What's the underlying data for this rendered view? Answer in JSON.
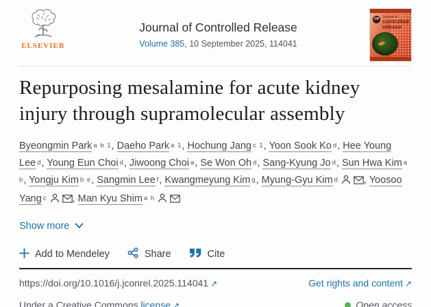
{
  "header": {
    "publisher_name": "ELSEVIER",
    "journal_title": "Journal of Controlled Release",
    "volume_link": "Volume 385",
    "issue_info": ", 10 September 2025, 114041",
    "cover": {
      "logo_text": "CR",
      "line1": "Journal of",
      "line2": "controlled release"
    }
  },
  "article": {
    "title": "Repurposing mesalamine for acute kidney injury through supramolecular assembly"
  },
  "authors": [
    {
      "name": "Byeongmin Park",
      "sup": "a b 1",
      "corresponding": false
    },
    {
      "name": "Daeho Park",
      "sup": "a 1",
      "corresponding": false
    },
    {
      "name": "Hochung Jang",
      "sup": "c 1",
      "corresponding": false
    },
    {
      "name": "Yoon Sook Ko",
      "sup": "d",
      "corresponding": false
    },
    {
      "name": "Hee Young Lee",
      "sup": "d",
      "corresponding": false
    },
    {
      "name": "Young Eun Choi",
      "sup": "d",
      "corresponding": false
    },
    {
      "name": "Jiwoong Choi",
      "sup": "a",
      "corresponding": false
    },
    {
      "name": "Se Won Oh",
      "sup": "d",
      "corresponding": false
    },
    {
      "name": "Sang-Kyung Jo",
      "sup": "d",
      "corresponding": false
    },
    {
      "name": "Sun Hwa Kim",
      "sup": "a b",
      "corresponding": false
    },
    {
      "name": "Yongju Kim",
      "sup": "b e",
      "corresponding": false
    },
    {
      "name": "Sangmin Lee",
      "sup": "f",
      "corresponding": false
    },
    {
      "name": "Kwangmeyung Kim",
      "sup": "g",
      "corresponding": false
    },
    {
      "name": "Myung-Gyu Kim",
      "sup": "d",
      "corresponding": true
    },
    {
      "name": "Yoosoo Yang",
      "sup": "c",
      "corresponding": true
    },
    {
      "name": "Man Kyu Shim",
      "sup": "a h",
      "corresponding": true
    }
  ],
  "actions": {
    "show_more": "Show more",
    "add_to_mendeley": "Add to Mendeley",
    "share": "Share",
    "cite": "Cite"
  },
  "links": {
    "doi": "https://doi.org/10.1016/j.jconrel.2025.114041",
    "rights": "Get rights and content",
    "license_prefix": "Under a Creative Commons ",
    "license_link": "license",
    "open_access": "Open access"
  },
  "colors": {
    "link_blue": "#1d72aa",
    "elsevier_orange": "#e8712a",
    "title_dark": "#1b1b25",
    "text_gray": "#53535f",
    "open_access_green": "#4fb54e"
  }
}
